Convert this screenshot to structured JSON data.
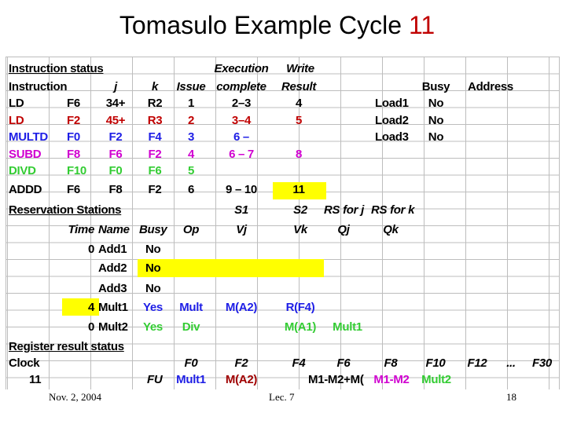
{
  "title": {
    "text": "Tomasulo Example Cycle",
    "cycle": "11"
  },
  "headers": {
    "instruction_status": "Instruction status",
    "execution": "Execution",
    "write": "Write",
    "instruction": "Instruction",
    "j": "j",
    "k": "k",
    "issue": "Issue",
    "complete": "complete",
    "result": "Result",
    "busy": "Busy",
    "address": "Address"
  },
  "instructions": [
    {
      "op": "LD",
      "dest": "F6",
      "j": "34+",
      "k": "R2",
      "issue": "1",
      "complete": "2–3",
      "result": "4",
      "color": "#000000"
    },
    {
      "op": "LD",
      "dest": "F2",
      "j": "45+",
      "k": "R3",
      "issue": "2",
      "complete": "3–4",
      "result": "5",
      "color": "#c00000"
    },
    {
      "op": "MULTD",
      "dest": "F0",
      "j": "F2",
      "k": "F4",
      "issue": "3",
      "complete": "6 –",
      "result": "",
      "color": "#1e1ee6"
    },
    {
      "op": "SUBD",
      "dest": "F8",
      "j": "F6",
      "k": "F2",
      "issue": "4",
      "complete": "6 – 7",
      "result": "8",
      "color": "#d000d0"
    },
    {
      "op": "DIVD",
      "dest": "F10",
      "j": "F0",
      "k": "F6",
      "issue": "5",
      "complete": "",
      "result": "",
      "color": "#33cc33"
    },
    {
      "op": "ADDD",
      "dest": "F6",
      "j": "F8",
      "k": "F2",
      "issue": "6",
      "complete": "9 – 10",
      "result": "11",
      "color": "#000000"
    }
  ],
  "load_buffers": [
    {
      "name": "Load1",
      "busy": "No"
    },
    {
      "name": "Load2",
      "busy": "No"
    },
    {
      "name": "Load3",
      "busy": "No"
    }
  ],
  "reservation": {
    "title": "Reservation Stations",
    "s1": "S1",
    "s2": "S2",
    "rs_j": "RS for j",
    "rs_k": "RS for k",
    "cols": {
      "time": "Time",
      "name": "Name",
      "busy": "Busy",
      "op": "Op",
      "vj": "Vj",
      "vk": "Vk",
      "qj": "Qj",
      "qk": "Qk"
    },
    "rows": [
      {
        "time": "0",
        "name": "Add1",
        "busy": "No",
        "op": "",
        "vj": "",
        "vk": "",
        "qj": "",
        "qk": ""
      },
      {
        "time": "",
        "name": "Add2",
        "busy": "No",
        "op": "",
        "vj": "",
        "vk": "",
        "qj": "",
        "qk": ""
      },
      {
        "time": "",
        "name": "Add3",
        "busy": "No",
        "op": "",
        "vj": "",
        "vk": "",
        "qj": "",
        "qk": ""
      },
      {
        "time": "4",
        "name": "Mult1",
        "busy": "Yes",
        "op": "Mult",
        "vj": "M(A2)",
        "vk": "R(F4)",
        "qj": "",
        "qk": ""
      },
      {
        "time": "0",
        "name": "Mult2",
        "busy": "Yes",
        "op": "Div",
        "vj": "",
        "vk": "M(A1)",
        "qj": "Mult1",
        "qk": ""
      }
    ]
  },
  "register": {
    "title": "Register result status",
    "clock_label": "Clock",
    "clock_value": "11",
    "fu_label": "FU",
    "regs": [
      "F0",
      "F2",
      "F4",
      "F6",
      "F8",
      "F10",
      "F12",
      "...",
      "F30"
    ],
    "fu": [
      "Mult1",
      "M(A2)",
      "",
      "M1-M2+M(",
      "M1-M2",
      "Mult2",
      "",
      "",
      ""
    ]
  },
  "footer": {
    "date": "Nov. 2, 2004",
    "lecture": "Lec. 7",
    "page": "18"
  },
  "colors": {
    "highlight": "#ffff00",
    "red": "#c00000",
    "blue": "#1e1ee6",
    "purple": "#d000d0",
    "green": "#33cc33"
  }
}
